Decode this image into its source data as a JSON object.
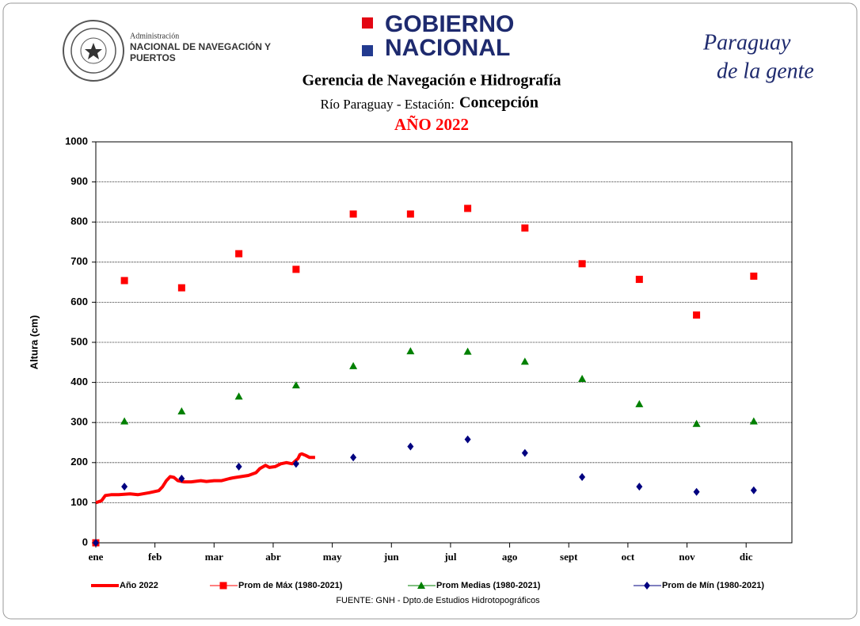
{
  "header": {
    "admin_small": "Administración",
    "admin_line1": "NACIONAL DE NAVEGACIÓN Y",
    "admin_line2": "PUERTOS",
    "gov_line1": "GOBIERNO",
    "gov_line2": "NACIONAL",
    "brand_line1": "Paraguay",
    "brand_line2": "de la gente"
  },
  "chart_data": {
    "type": "line-scatter",
    "title": "Gerencia de Navegación e Hidrografía",
    "subtitle_prefix": "Río Paraguay - Estación:",
    "subtitle_station": "Concepción",
    "year_title": "AÑO 2022",
    "y_label": "Altura (cm)",
    "source": "FUENTE:  GNH - Dpto.de Estudios Hidrotopográficos",
    "xlim": [
      0,
      365
    ],
    "ylim": [
      0,
      1000
    ],
    "yticks": [
      0,
      100,
      200,
      300,
      400,
      500,
      600,
      700,
      800,
      900,
      1000
    ],
    "xticks": [
      {
        "value": 0,
        "label": "ene"
      },
      {
        "value": 31,
        "label": "feb"
      },
      {
        "value": 62,
        "label": "mar"
      },
      {
        "value": 93,
        "label": "abr"
      },
      {
        "value": 124,
        "label": "may"
      },
      {
        "value": 155,
        "label": "jun"
      },
      {
        "value": 186,
        "label": "jul"
      },
      {
        "value": 217,
        "label": "ago"
      },
      {
        "value": 248,
        "label": "sept"
      },
      {
        "value": 279,
        "label": "oct"
      },
      {
        "value": 310,
        "label": "nov"
      },
      {
        "value": 341,
        "label": "dic"
      }
    ],
    "grid": true,
    "series": [
      {
        "name": "Año 2022",
        "kind": "line",
        "color": "#ff0000",
        "x": [
          0,
          3,
          5,
          8,
          12,
          18,
          22,
          28,
          33,
          35,
          37,
          39,
          41,
          43,
          46,
          50,
          55,
          58,
          62,
          66,
          70,
          72,
          76,
          80,
          84,
          86,
          89,
          91,
          94,
          97,
          100,
          103,
          106,
          107,
          108,
          110,
          112,
          115
        ],
        "values": [
          100,
          105,
          118,
          120,
          120,
          122,
          120,
          125,
          130,
          140,
          155,
          165,
          163,
          155,
          152,
          152,
          155,
          153,
          155,
          155,
          160,
          162,
          165,
          168,
          175,
          185,
          193,
          188,
          190,
          197,
          200,
          197,
          210,
          220,
          222,
          218,
          213,
          213
        ]
      },
      {
        "name": "Prom de Máx (1980-2021)",
        "kind": "square",
        "color": "#ff0000",
        "x": [
          0,
          15,
          45,
          75,
          105,
          135,
          165,
          195,
          225,
          255,
          285,
          315,
          345
        ],
        "values": [
          0,
          654,
          636,
          721,
          682,
          820,
          820,
          834,
          785,
          696,
          657,
          568,
          665
        ]
      },
      {
        "name": "Prom Medias (1980-2021)",
        "kind": "triangle",
        "color": "#008000",
        "x": [
          15,
          45,
          75,
          105,
          135,
          165,
          195,
          225,
          255,
          285,
          315,
          345
        ],
        "values": [
          303,
          328,
          365,
          393,
          441,
          478,
          477,
          452,
          409,
          346,
          297,
          303
        ]
      },
      {
        "name": "Prom de Mín  (1980-2021)",
        "kind": "diamond",
        "color": "#000080",
        "x": [
          0,
          15,
          45,
          75,
          105,
          135,
          165,
          195,
          225,
          255,
          285,
          315,
          345
        ],
        "values": [
          0,
          140,
          160,
          190,
          197,
          213,
          240,
          258,
          224,
          164,
          140,
          127,
          131
        ]
      }
    ]
  }
}
